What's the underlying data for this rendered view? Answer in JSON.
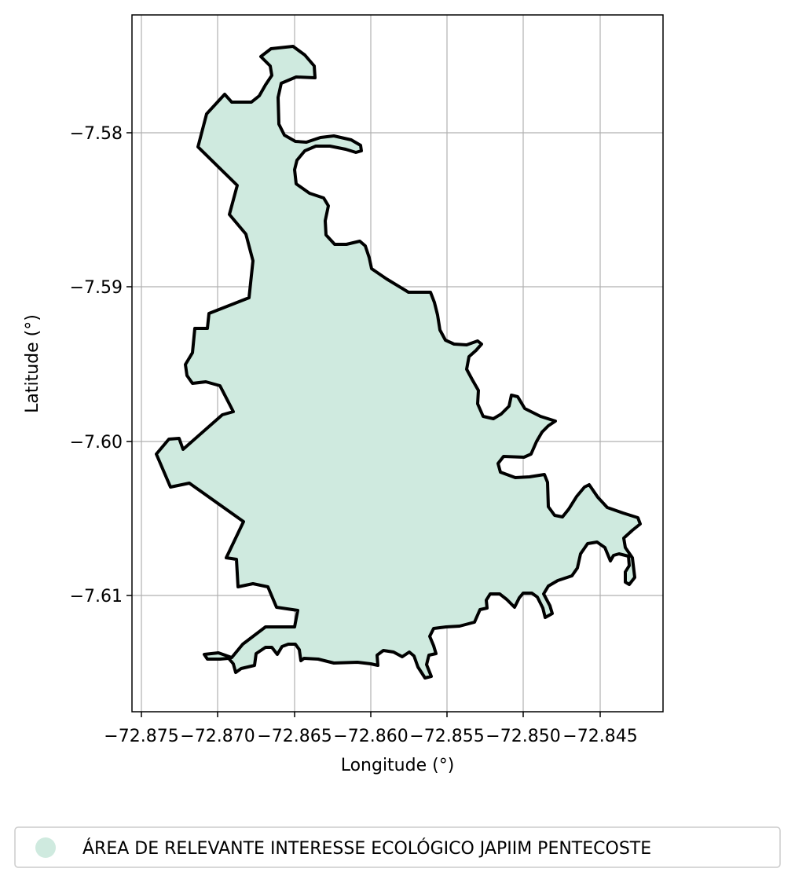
{
  "figure": {
    "xlabel": "Longitude (°)",
    "ylabel": "Latitude (°)",
    "xticks": [
      "−72.875",
      "−72.870",
      "−72.865",
      "−72.860",
      "−72.855",
      "−72.850",
      "−72.845"
    ],
    "yticks": [
      "−7.58",
      "−7.59",
      "−7.60",
      "−7.61"
    ],
    "grid": true
  },
  "legend": {
    "label": "ÁREA DE RELEVANTE INTERESSE ECOLÓGICO JAPIIM PENTECOSTE",
    "placement": "bottom-center"
  },
  "colors": {
    "fill": "#cfeadf",
    "outline": "#000000",
    "grid": "#b0b0b0",
    "legend_marker": "#cfeadf"
  },
  "map": {
    "xlim": [
      -72.8755,
      -72.8415
    ],
    "ylim": [
      -7.6175,
      -7.5725
    ],
    "feature_name": "ÁREA DE RELEVANTE INTERESSE ECOLÓGICO JAPIIM PENTECOSTE"
  }
}
